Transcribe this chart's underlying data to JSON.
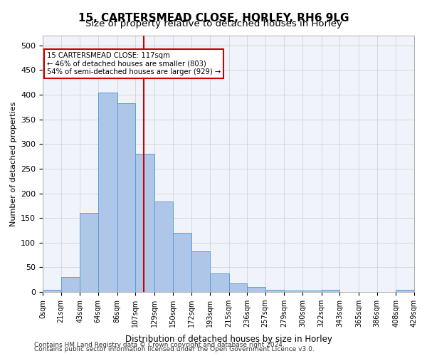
{
  "title_line1": "15, CARTERSMEAD CLOSE, HORLEY, RH6 9LG",
  "title_line2": "Size of property relative to detached houses in Horley",
  "xlabel": "Distribution of detached houses by size in Horley",
  "ylabel": "Number of detached properties",
  "footer_line1": "Contains HM Land Registry data © Crown copyright and database right 2024.",
  "footer_line2": "Contains public sector information licensed under the Open Government Licence v3.0.",
  "annotation_line1": "15 CARTERSMEAD CLOSE: 117sqm",
  "annotation_line2": "← 46% of detached houses are smaller (803)",
  "annotation_line3": "54% of semi-detached houses are larger (929) →",
  "property_size": 117,
  "bar_color": "#aec6e8",
  "bar_edge_color": "#5a9fd4",
  "vline_color": "#cc0000",
  "annotation_box_color": "#cc0000",
  "background_color": "#f0f4fa",
  "categories": [
    "0sqm",
    "21sqm",
    "43sqm",
    "64sqm",
    "86sqm",
    "107sqm",
    "129sqm",
    "150sqm",
    "172sqm",
    "193sqm",
    "215sqm",
    "236sqm",
    "257sqm",
    "279sqm",
    "300sqm",
    "322sqm",
    "343sqm",
    "365sqm",
    "386sqm",
    "408sqm",
    "429sqm"
  ],
  "bar_lefts": [
    0,
    21,
    43,
    64,
    86,
    107,
    129,
    150,
    172,
    193,
    215,
    236,
    257,
    279,
    300,
    322,
    343,
    365,
    386,
    408
  ],
  "bar_widths": [
    21,
    22,
    21,
    22,
    21,
    22,
    21,
    22,
    21,
    22,
    21,
    21,
    22,
    21,
    22,
    21,
    22,
    21,
    22,
    21
  ],
  "bar_heights": [
    5,
    30,
    160,
    405,
    383,
    280,
    183,
    120,
    83,
    38,
    18,
    10,
    5,
    3,
    3,
    5,
    0,
    0,
    0,
    5
  ],
  "ylim": [
    0,
    520
  ],
  "yticks": [
    0,
    50,
    100,
    150,
    200,
    250,
    300,
    350,
    400,
    450,
    500
  ],
  "grid_color": "#cccccc"
}
